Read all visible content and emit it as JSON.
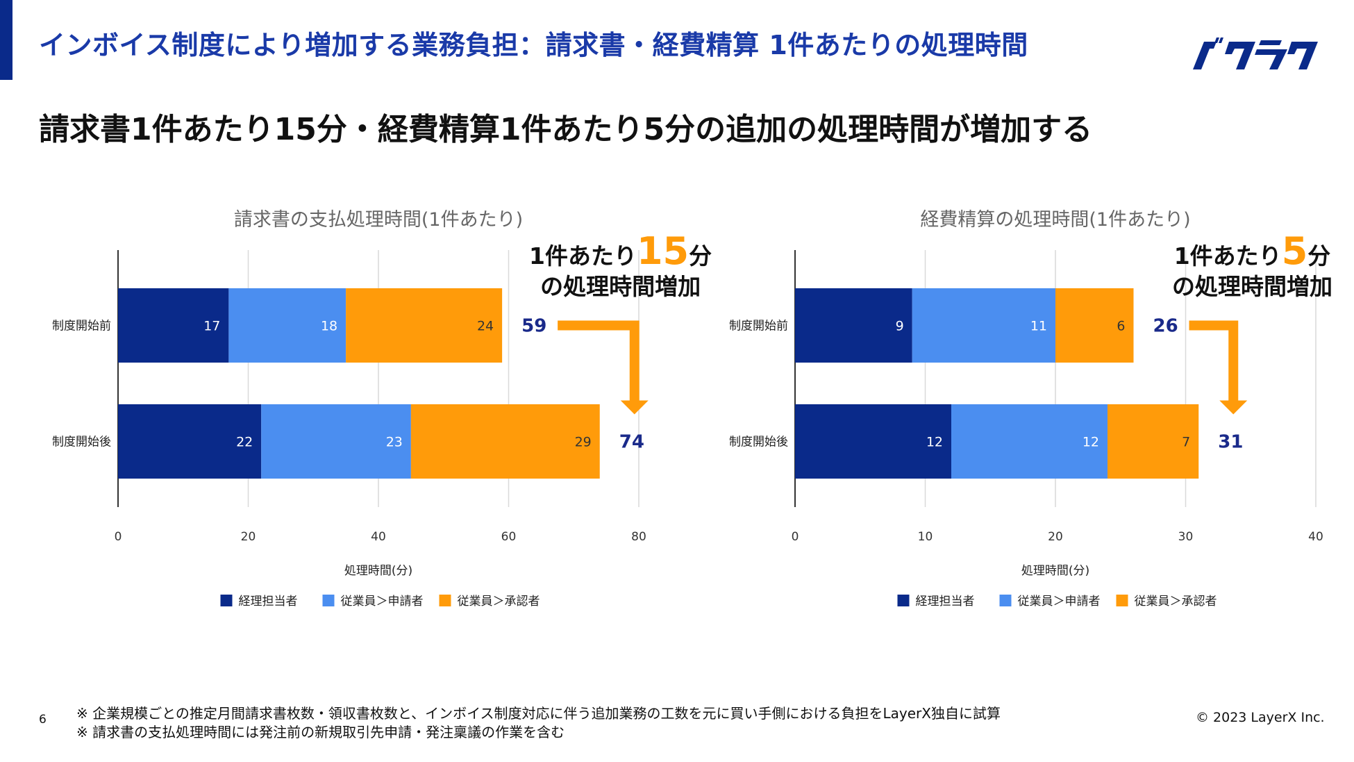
{
  "header": {
    "title": "インボイス制度により増加する業務負担：請求書・経費精算 1件あたりの処理時間",
    "logo_text": "バクラク"
  },
  "headline": "請求書1件あたり15分・経費精算1件あたり5分の追加の処理時間が増加する",
  "colors": {
    "accent": "#0a2a8a",
    "title": "#1a3aa8",
    "series_dark": "#0a2a8a",
    "series_blue": "#4b8ef0",
    "series_orange": "#ff9b0a",
    "total_label": "#1a2a8a"
  },
  "chart_data": [
    {
      "type": "bar",
      "orientation": "horizontal",
      "stacked": true,
      "title": "請求書の支払処理時間(1件あたり)",
      "xlabel": "処理時間(分)",
      "ylabel": "",
      "categories": [
        "制度開始前",
        "制度開始後"
      ],
      "series": [
        {
          "name": "経理担当者",
          "values": [
            17,
            22
          ],
          "color": "#0a2a8a"
        },
        {
          "name": "従業員＞申請者",
          "values": [
            18,
            23
          ],
          "color": "#4b8ef0"
        },
        {
          "name": "従業員＞承認者",
          "values": [
            24,
            29
          ],
          "color": "#ff9b0a"
        }
      ],
      "totals": [
        59,
        74
      ],
      "xlim": [
        0,
        80
      ],
      "xticks": [
        0,
        20,
        40,
        60,
        80
      ],
      "grid": true,
      "legend": "bottom",
      "callout": {
        "prefix": "1件あたり",
        "number": "15",
        "suffix": "分",
        "line2": "の処理時間増加"
      }
    },
    {
      "type": "bar",
      "orientation": "horizontal",
      "stacked": true,
      "title": "経費精算の処理時間(1件あたり)",
      "xlabel": "処理時間(分)",
      "ylabel": "",
      "categories": [
        "制度開始前",
        "制度開始後"
      ],
      "series": [
        {
          "name": "経理担当者",
          "values": [
            9,
            12
          ],
          "color": "#0a2a8a"
        },
        {
          "name": "従業員＞申請者",
          "values": [
            11,
            12
          ],
          "color": "#4b8ef0"
        },
        {
          "name": "従業員＞承認者",
          "values": [
            6,
            7
          ],
          "color": "#ff9b0a"
        }
      ],
      "totals": [
        26,
        31
      ],
      "xlim": [
        0,
        40
      ],
      "xticks": [
        0,
        10,
        20,
        30,
        40
      ],
      "grid": true,
      "legend": "bottom",
      "callout": {
        "prefix": "1件あたり",
        "number": "5",
        "suffix": "分",
        "line2": "の処理時間増加"
      }
    }
  ],
  "footer": {
    "page_number": "6",
    "notes": [
      "※ 企業規模ごとの推定月間請求書枚数・領収書枚数と、インボイス制度対応に伴う追加業務の工数を元に買い手側における負担をLayerX独自に試算",
      "※ 請求書の支払処理時間には発注前の新規取引先申請・発注稟議の作業を含む"
    ],
    "copyright": "© 2023 LayerX Inc."
  }
}
